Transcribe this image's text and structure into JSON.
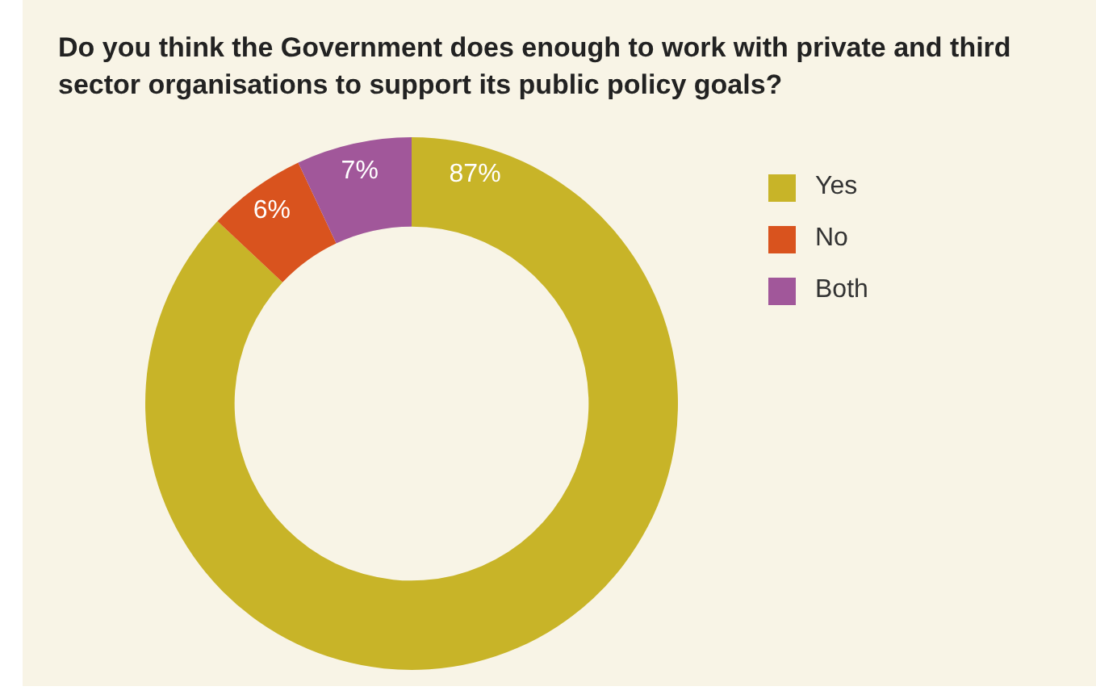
{
  "chart_data": {
    "type": "donut",
    "title": "Do you think the Government does enough to work with private and third sector organisations to support its public policy goals?",
    "categories": [
      "Yes",
      "No",
      "Both"
    ],
    "values": [
      87,
      6,
      7
    ],
    "colors": [
      "#c8b428",
      "#d9531e",
      "#a1579a"
    ],
    "value_labels": [
      "87%",
      "6%",
      "7%"
    ],
    "legend": "top right"
  }
}
